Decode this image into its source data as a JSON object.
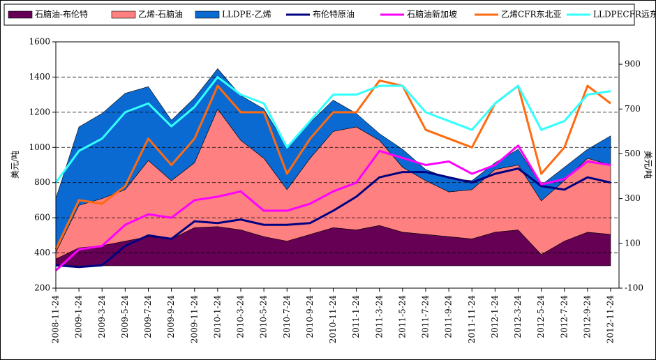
{
  "chart_data": {
    "type": "combo",
    "categories": [
      "2008-11-24",
      "2009-1-24",
      "2009-3-24",
      "2009-5-24",
      "2009-7-24",
      "2009-9-24",
      "2009-11-24",
      "2010-1-24",
      "2010-3-24",
      "2010-5-24",
      "2010-7-24",
      "2010-9-24",
      "2010-11-24",
      "2011-1-24",
      "2011-3-24",
      "2011-5-24",
      "2011-7-24",
      "2011-9-24",
      "2011-11-24",
      "2012-1-24",
      "2012-3-24",
      "2012-5-24",
      "2012-7-24",
      "2012-9-24",
      "2012-11-24"
    ],
    "y_label": "美元/吨",
    "y2_label": "美元/吨",
    "ylim": [
      200,
      1600
    ],
    "yticks": [
      200,
      400,
      600,
      800,
      1000,
      1200,
      1400,
      1600
    ],
    "y2lim": [
      -100,
      1000
    ],
    "y2ticks": [
      -100,
      100,
      300,
      500,
      700,
      900
    ],
    "grid": true,
    "series": [
      {
        "name": "石脑油-布伦特",
        "kind": "area",
        "axis": "y2",
        "color": "#660055",
        "values": [
          30,
          80,
          90,
          110,
          130,
          120,
          170,
          175,
          160,
          130,
          110,
          140,
          170,
          160,
          180,
          150,
          140,
          130,
          120,
          150,
          160,
          50,
          110,
          150,
          140
        ]
      },
      {
        "name": "乙烯-石脑油",
        "kind": "area",
        "axis": "y2",
        "color": "#ff8080",
        "values": [
          30,
          190,
          210,
          230,
          340,
          260,
          290,
          525,
          400,
          350,
          230,
          340,
          430,
          460,
          380,
          290,
          240,
          200,
          220,
          280,
          290,
          240,
          270,
          330,
          310
        ]
      },
      {
        "name": "LLDPE-乙烯",
        "kind": "area",
        "axis": "y2",
        "color": "#0a6ad2",
        "values": [
          240,
          350,
          380,
          430,
          330,
          270,
          290,
          180,
          200,
          220,
          190,
          160,
          140,
          60,
          30,
          80,
          50,
          60,
          40,
          30,
          70,
          70,
          60,
          40,
          130
        ]
      },
      {
        "name": "布伦特原油",
        "kind": "line",
        "color": "#000080",
        "values": [
          330,
          320,
          330,
          440,
          500,
          480,
          580,
          570,
          590,
          560,
          560,
          570,
          640,
          720,
          830,
          860,
          860,
          830,
          800,
          850,
          880,
          780,
          760,
          830,
          800
        ]
      },
      {
        "name": "石脑油新加坡",
        "kind": "line",
        "color": "#ff00ff",
        "values": [
          300,
          420,
          440,
          560,
          620,
          600,
          700,
          720,
          750,
          640,
          640,
          680,
          750,
          800,
          980,
          940,
          900,
          920,
          850,
          900,
          1010,
          790,
          820,
          920,
          900
        ]
      },
      {
        "name": "乙烯CFR东北亚",
        "kind": "line",
        "color": "#ff6a10",
        "values": [
          420,
          700,
          680,
          780,
          1050,
          900,
          1050,
          1350,
          1200,
          1200,
          850,
          1050,
          1200,
          1200,
          1380,
          1350,
          1100,
          1050,
          1000,
          1250,
          1350,
          850,
          1000,
          1350,
          1250
        ]
      },
      {
        "name": "LLDPECFR远东",
        "kind": "line",
        "color": "#33ffff",
        "values": [
          800,
          980,
          1050,
          1200,
          1250,
          1120,
          1230,
          1400,
          1300,
          1250,
          1000,
          1150,
          1300,
          1300,
          1350,
          1350,
          1200,
          1150,
          1100,
          1250,
          1350,
          1100,
          1150,
          1300,
          1320
        ]
      }
    ]
  }
}
